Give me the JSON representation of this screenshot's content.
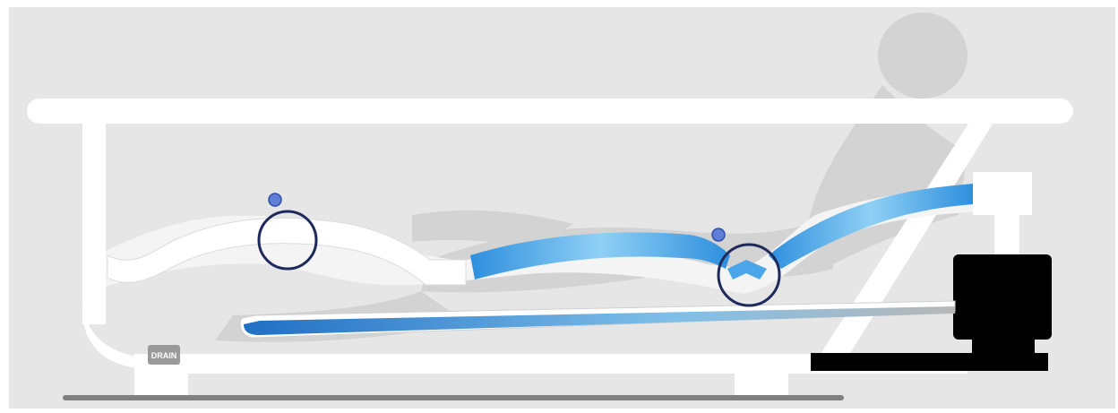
{
  "diagram": {
    "drain_label": "DRAIN",
    "colors": {
      "background": "#e6e6e6",
      "tub": "#ffffff",
      "air_channel": "#2e8fde",
      "air_channel_light": "#8fd0f5",
      "outline": "#1f2a5c",
      "jet": "#5f7fd6",
      "blower": "#000000",
      "floor": "#808080"
    },
    "icons": [
      "bather-silhouette",
      "air-bubble-jet",
      "air-blower-unit",
      "drain-fitting"
    ]
  }
}
